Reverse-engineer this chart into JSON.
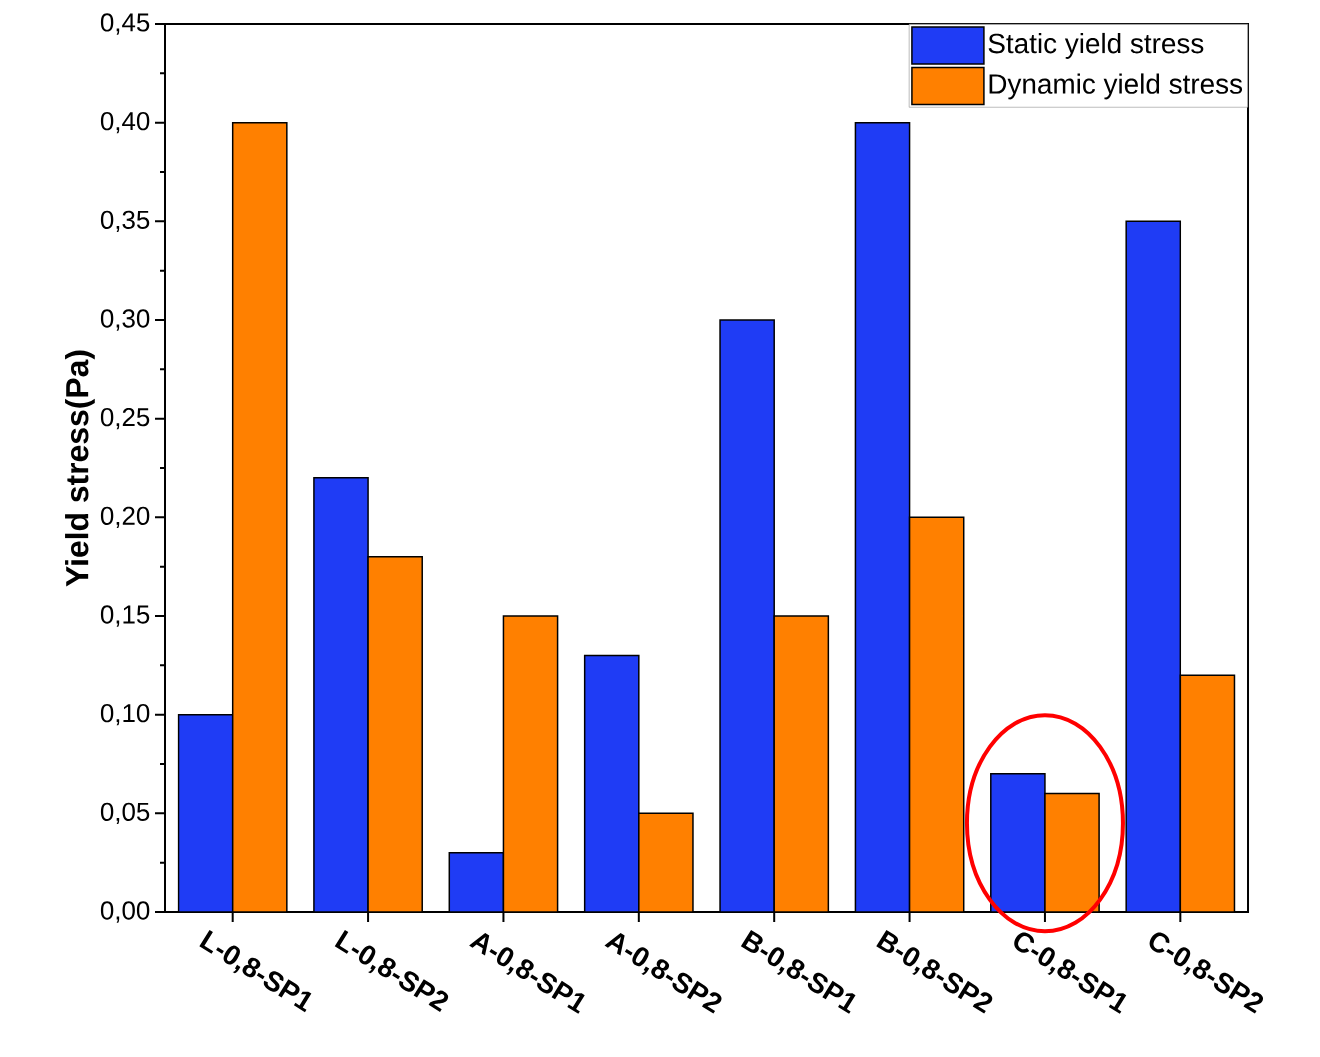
{
  "chart_data": {
    "type": "bar",
    "ylabel": "Yield stress(Pa)",
    "categories": [
      "L-0,8-SP1",
      "L-0,8-SP2",
      "A-0,8-SP1",
      "A-0,8-SP2",
      "B-0,8-SP1",
      "B-0,8-SP2",
      "C-0,8-SP1",
      "C-0,8-SP2"
    ],
    "series": [
      {
        "name": "Static yield stress",
        "color": "#1f3cf5",
        "values": [
          0.1,
          0.22,
          0.03,
          0.13,
          0.3,
          0.4,
          0.07,
          0.35
        ]
      },
      {
        "name": "Dynamic yield stress",
        "color": "#ff8000",
        "values": [
          0.4,
          0.18,
          0.15,
          0.05,
          0.15,
          0.2,
          0.06,
          0.12
        ]
      }
    ],
    "ylim": [
      0,
      0.45
    ],
    "yticks": [
      {
        "value": 0,
        "label": "0,00"
      },
      {
        "value": 0.05,
        "label": "0,05"
      },
      {
        "value": 0.1,
        "label": "0,10"
      },
      {
        "value": 0.15,
        "label": "0,15"
      },
      {
        "value": 0.2,
        "label": "0,20"
      },
      {
        "value": 0.25,
        "label": "0,25"
      },
      {
        "value": 0.3,
        "label": "0,30"
      },
      {
        "value": 0.35,
        "label": "0,35"
      },
      {
        "value": 0.4,
        "label": "0,40"
      },
      {
        "value": 0.45,
        "label": "0,45"
      }
    ],
    "legend": "top right",
    "grid": false
  }
}
